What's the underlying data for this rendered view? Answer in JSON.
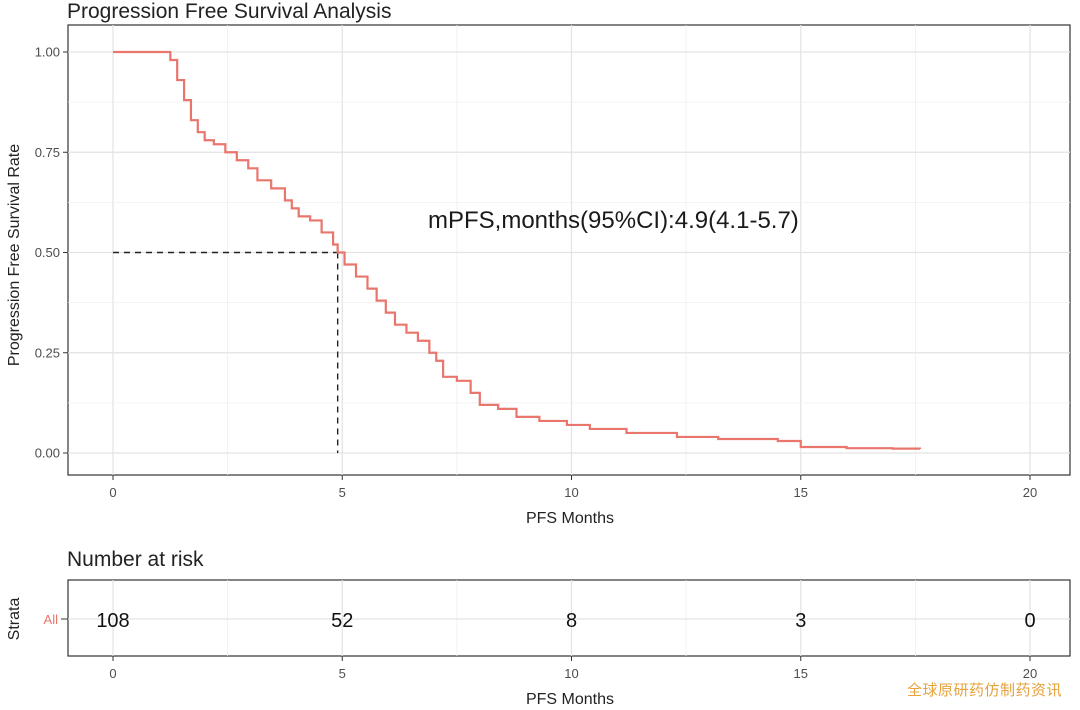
{
  "chart_data": [
    {
      "type": "line",
      "title": "Progression Free Survival Analysis",
      "xlabel": "PFS Months",
      "ylabel": "Progression Free Survival Rate",
      "xlim": [
        0,
        20
      ],
      "ylim": [
        0,
        1
      ],
      "xticks": [
        "0",
        "5",
        "10",
        "15",
        "20"
      ],
      "yticks": [
        "0.00",
        "0.25",
        "0.50",
        "0.75",
        "1.00"
      ],
      "xtick_values": [
        0,
        5,
        10,
        15,
        20
      ],
      "ytick_values": [
        0,
        0.25,
        0.5,
        0.75,
        1.0
      ],
      "grid": true,
      "series": [
        {
          "name": "All",
          "color": "#e8766c",
          "x": [
            0,
            1.25,
            1.4,
            1.55,
            1.7,
            1.85,
            2.0,
            2.2,
            2.45,
            2.7,
            2.95,
            3.15,
            3.45,
            3.75,
            3.9,
            4.05,
            4.3,
            4.55,
            4.8,
            4.9,
            5.05,
            5.3,
            5.55,
            5.75,
            5.95,
            6.15,
            6.4,
            6.65,
            6.9,
            7.05,
            7.2,
            7.5,
            7.8,
            8.0,
            8.4,
            8.8,
            9.3,
            9.9,
            10.4,
            11.2,
            12.3,
            13.2,
            14.5,
            15.0,
            16.0,
            17.0,
            17.6
          ],
          "y": [
            1.0,
            0.98,
            0.93,
            0.88,
            0.83,
            0.8,
            0.78,
            0.77,
            0.75,
            0.73,
            0.71,
            0.68,
            0.66,
            0.63,
            0.61,
            0.59,
            0.58,
            0.55,
            0.52,
            0.5,
            0.47,
            0.44,
            0.41,
            0.38,
            0.35,
            0.32,
            0.3,
            0.28,
            0.25,
            0.23,
            0.19,
            0.18,
            0.15,
            0.12,
            0.11,
            0.09,
            0.08,
            0.07,
            0.06,
            0.05,
            0.04,
            0.035,
            0.03,
            0.015,
            0.012,
            0.011,
            0.01
          ]
        }
      ],
      "reference_lines": [
        {
          "label": "median",
          "x": 4.9,
          "y": 0.5,
          "style": "dashed"
        }
      ],
      "annotation": "mPFS,months(95%CI):4.9(4.1-5.7)"
    },
    {
      "type": "table",
      "title": "Number at risk",
      "xlabel": "PFS Months",
      "ylabel": "Strata",
      "xlim": [
        0,
        20
      ],
      "xticks": [
        "0",
        "5",
        "10",
        "15",
        "20"
      ],
      "xtick_values": [
        0,
        5,
        10,
        15,
        20
      ],
      "strata": [
        {
          "name": "All",
          "color": "#e8766c",
          "x": [
            0,
            5,
            10,
            15,
            20
          ],
          "values": [
            "108",
            "52",
            "8",
            "3",
            "0"
          ]
        }
      ]
    }
  ],
  "watermark": "全球原研药仿制药资讯"
}
